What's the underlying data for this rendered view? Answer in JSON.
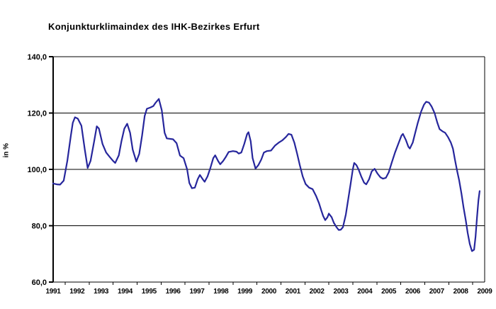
{
  "title": "Konjunkturklimaindex des IHK-Bezirkes Erfurt",
  "colors": {
    "line": "#26269C",
    "grid": "#000000",
    "axis": "#000000",
    "text": "#000000",
    "background": "#FFFFFF"
  },
  "chart_data": {
    "type": "line",
    "title": "Konjunkturklimaindex des IHK-Bezirkes Erfurt",
    "xlabel": "",
    "ylabel": "in %",
    "legend": "none",
    "grid": true,
    "xlim": [
      1991,
      2009
    ],
    "ylim": [
      60,
      140
    ],
    "ytick_step": 20,
    "y_ticks": [
      140,
      120,
      100,
      80,
      60
    ],
    "y_ticklabels": [
      "140,0",
      "120,0",
      "100,0",
      "80,0",
      "60,0"
    ],
    "x_ticks": [
      1991,
      1992,
      1993,
      1994,
      1995,
      1996,
      1997,
      1998,
      1999,
      2000,
      2001,
      2002,
      2003,
      2004,
      2005,
      2006,
      2007,
      2008,
      2009
    ],
    "x_ticklabels": [
      "1991",
      "1992",
      "1993",
      "1994",
      "1995",
      "1996",
      "1997",
      "1998",
      "1999",
      "2000",
      "2001",
      "2002",
      "2003",
      "2004",
      "2005",
      "2006",
      "2007",
      "2008",
      "2009"
    ],
    "series": [
      {
        "name": "Konjunkturklimaindex",
        "color": "#26269C",
        "points": [
          [
            1991.0,
            95.0
          ],
          [
            1991.15,
            94.7
          ],
          [
            1991.29,
            94.6
          ],
          [
            1991.44,
            96.0
          ],
          [
            1991.59,
            103.0
          ],
          [
            1991.74,
            112.0
          ],
          [
            1991.82,
            116.5
          ],
          [
            1991.91,
            118.5
          ],
          [
            1992.03,
            118.0
          ],
          [
            1992.18,
            115.5
          ],
          [
            1992.32,
            107.0
          ],
          [
            1992.44,
            100.5
          ],
          [
            1992.56,
            103.0
          ],
          [
            1992.71,
            110.0
          ],
          [
            1992.82,
            115.3
          ],
          [
            1992.91,
            114.5
          ],
          [
            1993.06,
            109.0
          ],
          [
            1993.21,
            106.0
          ],
          [
            1993.35,
            104.5
          ],
          [
            1993.5,
            103.0
          ],
          [
            1993.59,
            102.3
          ],
          [
            1993.74,
            105.0
          ],
          [
            1993.85,
            110.0
          ],
          [
            1993.97,
            114.5
          ],
          [
            1994.09,
            116.2
          ],
          [
            1994.21,
            113.0
          ],
          [
            1994.32,
            107.0
          ],
          [
            1994.47,
            102.8
          ],
          [
            1994.59,
            105.5
          ],
          [
            1994.71,
            112.0
          ],
          [
            1994.82,
            119.0
          ],
          [
            1994.91,
            121.5
          ],
          [
            1995.06,
            122.0
          ],
          [
            1995.18,
            122.5
          ],
          [
            1995.26,
            123.5
          ],
          [
            1995.41,
            125.0
          ],
          [
            1995.53,
            121.0
          ],
          [
            1995.65,
            113.0
          ],
          [
            1995.74,
            111.0
          ],
          [
            1996.0,
            110.7
          ],
          [
            1996.15,
            109.3
          ],
          [
            1996.29,
            104.9
          ],
          [
            1996.44,
            104.0
          ],
          [
            1996.59,
            100.0
          ],
          [
            1996.68,
            95.2
          ],
          [
            1996.79,
            93.3
          ],
          [
            1996.91,
            93.5
          ],
          [
            1997.03,
            96.5
          ],
          [
            1997.12,
            98.0
          ],
          [
            1997.24,
            96.5
          ],
          [
            1997.32,
            95.6
          ],
          [
            1997.44,
            97.5
          ],
          [
            1997.56,
            100.5
          ],
          [
            1997.68,
            104.0
          ],
          [
            1997.76,
            105.0
          ],
          [
            1997.88,
            103.0
          ],
          [
            1997.97,
            101.8
          ],
          [
            1998.09,
            103.0
          ],
          [
            1998.21,
            104.5
          ],
          [
            1998.32,
            106.2
          ],
          [
            1998.5,
            106.5
          ],
          [
            1998.65,
            106.3
          ],
          [
            1998.74,
            105.6
          ],
          [
            1998.85,
            106.0
          ],
          [
            1998.97,
            109.0
          ],
          [
            1999.09,
            112.5
          ],
          [
            1999.15,
            113.2
          ],
          [
            1999.24,
            110.0
          ],
          [
            1999.32,
            104.0
          ],
          [
            1999.44,
            100.3
          ],
          [
            1999.56,
            101.5
          ],
          [
            1999.68,
            103.5
          ],
          [
            1999.79,
            106.0
          ],
          [
            1999.91,
            106.5
          ],
          [
            2000.09,
            106.7
          ],
          [
            2000.26,
            108.5
          ],
          [
            2000.41,
            109.5
          ],
          [
            2000.56,
            110.3
          ],
          [
            2000.71,
            111.5
          ],
          [
            2000.82,
            112.6
          ],
          [
            2000.94,
            112.3
          ],
          [
            2001.06,
            109.5
          ],
          [
            2001.18,
            105.5
          ],
          [
            2001.29,
            101.5
          ],
          [
            2001.41,
            97.5
          ],
          [
            2001.53,
            94.8
          ],
          [
            2001.68,
            93.5
          ],
          [
            2001.82,
            93.0
          ],
          [
            2001.97,
            90.5
          ],
          [
            2002.09,
            88.0
          ],
          [
            2002.18,
            85.5
          ],
          [
            2002.26,
            83.5
          ],
          [
            2002.35,
            82.0
          ],
          [
            2002.44,
            83.0
          ],
          [
            2002.5,
            84.3
          ],
          [
            2002.62,
            83.0
          ],
          [
            2002.71,
            81.0
          ],
          [
            2002.82,
            79.5
          ],
          [
            2002.91,
            78.5
          ],
          [
            2003.0,
            78.6
          ],
          [
            2003.09,
            79.5
          ],
          [
            2003.21,
            84.0
          ],
          [
            2003.32,
            90.0
          ],
          [
            2003.41,
            95.0
          ],
          [
            2003.5,
            100.0
          ],
          [
            2003.56,
            102.3
          ],
          [
            2003.65,
            101.5
          ],
          [
            2003.74,
            100.0
          ],
          [
            2003.85,
            97.5
          ],
          [
            2003.97,
            95.3
          ],
          [
            2004.06,
            94.7
          ],
          [
            2004.18,
            96.5
          ],
          [
            2004.29,
            99.3
          ],
          [
            2004.41,
            100.2
          ],
          [
            2004.53,
            98.5
          ],
          [
            2004.65,
            97.2
          ],
          [
            2004.76,
            96.7
          ],
          [
            2004.88,
            97.0
          ],
          [
            2005.0,
            99.0
          ],
          [
            2005.12,
            102.3
          ],
          [
            2005.26,
            106.0
          ],
          [
            2005.41,
            109.3
          ],
          [
            2005.53,
            112.0
          ],
          [
            2005.59,
            112.6
          ],
          [
            2005.71,
            110.5
          ],
          [
            2005.82,
            108.0
          ],
          [
            2005.88,
            107.4
          ],
          [
            2006.0,
            109.5
          ],
          [
            2006.09,
            112.5
          ],
          [
            2006.21,
            116.5
          ],
          [
            2006.35,
            120.5
          ],
          [
            2006.47,
            123.0
          ],
          [
            2006.56,
            124.0
          ],
          [
            2006.68,
            123.7
          ],
          [
            2006.79,
            122.3
          ],
          [
            2006.91,
            120.0
          ],
          [
            2007.03,
            116.5
          ],
          [
            2007.12,
            114.3
          ],
          [
            2007.24,
            113.5
          ],
          [
            2007.35,
            113.0
          ],
          [
            2007.47,
            111.5
          ],
          [
            2007.59,
            109.5
          ],
          [
            2007.68,
            107.3
          ],
          [
            2007.76,
            103.5
          ],
          [
            2007.85,
            99.5
          ],
          [
            2007.94,
            96.0
          ],
          [
            2008.03,
            91.5
          ],
          [
            2008.12,
            86.5
          ],
          [
            2008.21,
            82.0
          ],
          [
            2008.29,
            77.5
          ],
          [
            2008.38,
            73.5
          ],
          [
            2008.47,
            71.0
          ],
          [
            2008.56,
            71.5
          ],
          [
            2008.62,
            76.0
          ],
          [
            2008.68,
            83.0
          ],
          [
            2008.74,
            89.0
          ],
          [
            2008.79,
            92.3
          ]
        ]
      }
    ]
  }
}
